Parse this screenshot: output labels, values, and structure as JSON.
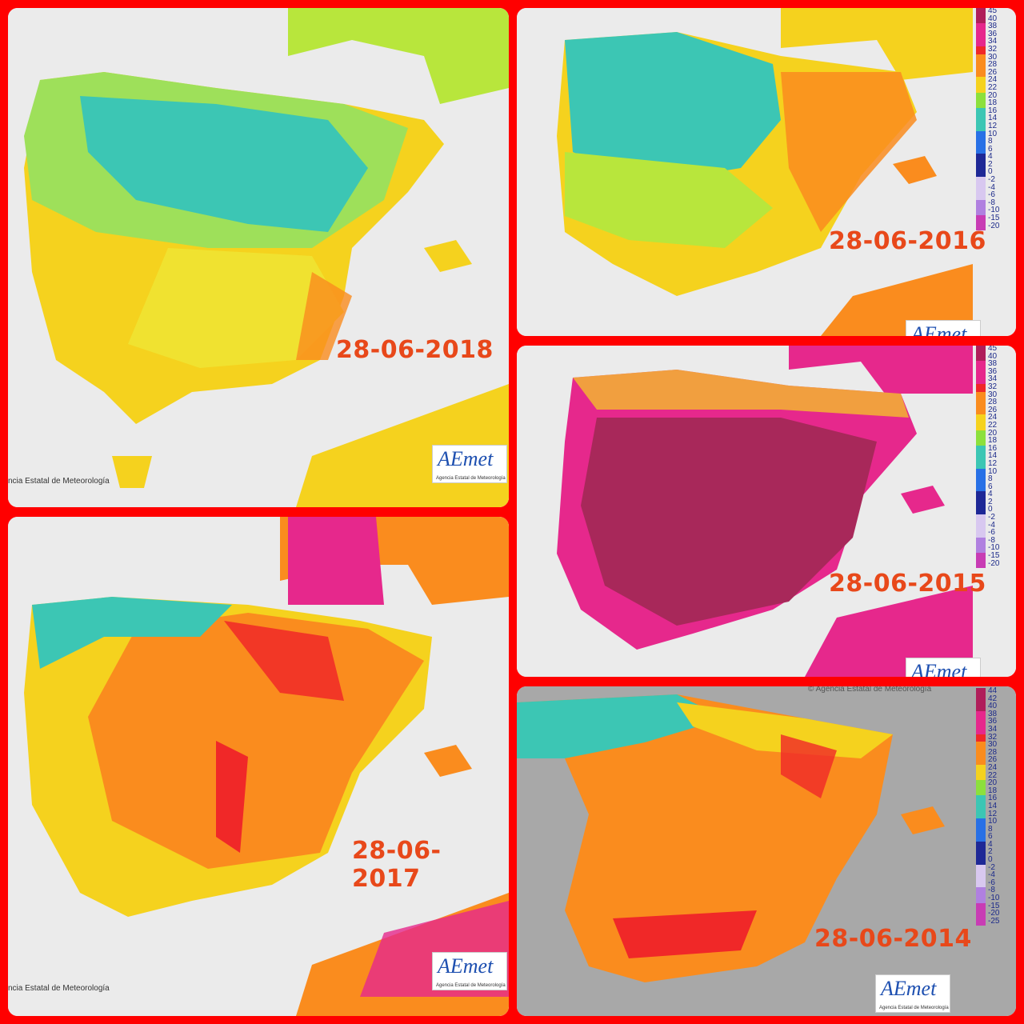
{
  "panels": {
    "p2018": {
      "date": "28-06-2018",
      "credit": "ncia Estatal de Meteorología",
      "logo": "AEmet",
      "logo_sub": "Agencia Estatal de Meteorología"
    },
    "p2016": {
      "date": "28-06-2016",
      "logo": "AEmet"
    },
    "p2015": {
      "date": "28-06-2015",
      "logo": "AEmet"
    },
    "p2017": {
      "date": "28-06-2017",
      "credit": "ncia Estatal de Meteorología",
      "logo": "AEmet",
      "logo_sub": "Agencia Estatal de Meteorología"
    },
    "p2014": {
      "date": "28-06-2014",
      "watermark": "© Agencia Estatal de Meteorología",
      "logo": "AEmet",
      "logo_sub": "Agencia Estatal de Meteorología"
    }
  },
  "legend_main": [
    "45",
    "40",
    "38",
    "36",
    "34",
    "32",
    "30",
    "28",
    "26",
    "24",
    "22",
    "20",
    "18",
    "16",
    "14",
    "12",
    "10",
    "8",
    "6",
    "4",
    "2",
    "0",
    "-2",
    "-4",
    "-6",
    "-8",
    "-10",
    "-15",
    "-20"
  ],
  "legend_2014": [
    "44",
    "42",
    "40",
    "38",
    "36",
    "34",
    "32",
    "30",
    "28",
    "26",
    "24",
    "22",
    "20",
    "18",
    "16",
    "14",
    "12",
    "10",
    "8",
    "6",
    "4",
    "2",
    "0",
    "-2",
    "-4",
    "-6",
    "-8",
    "-10",
    "-15",
    "-20",
    "-25"
  ],
  "colors": {
    "frame": "#ff0000",
    "sea": "#ebebeb",
    "sea_2014": "#a8a8a8",
    "cool": "#3cc6b4",
    "mild": "#b8e63c",
    "warm": "#f5d21e",
    "hot": "#fa8c1e",
    "very_hot": "#f02828",
    "extreme": "#e6288c",
    "date_text": "#e8481a"
  }
}
